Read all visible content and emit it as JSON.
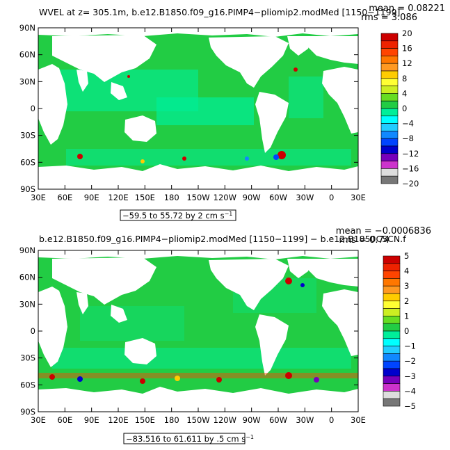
{
  "panels": [
    {
      "title": "WVEL at z= 305.1m, b.e12.B1850.f09_g16.PIMP4−pliomip2.modMed [1150−1199]",
      "mean_text": "mean = 0.08221",
      "rms_text": "rms = 3.086",
      "range_text": "−59.5 to 55.72 by 2 cm s",
      "range_unit_sup": "−1",
      "colorbar_labels": [
        "20",
        "16",
        "12",
        "8",
        "4",
        "0",
        "−4",
        "−8",
        "−12",
        "−16",
        "−20"
      ],
      "colorbar_colors": [
        "#cc0000",
        "#ee2200",
        "#ff4400",
        "#ff7700",
        "#ff9922",
        "#ffcc00",
        "#ffff33",
        "#ccee22",
        "#66dd22",
        "#22cc44",
        "#00ee99",
        "#00ffff",
        "#22ccff",
        "#1188ff",
        "#0044ff",
        "#0000cc",
        "#7700bb",
        "#cc33cc",
        "#dddddd",
        "#777777"
      ]
    },
    {
      "title": "b.e12.B1850.f09_g16.PIMP4−pliomip2.modMed [1150−1199] − b.e12.B1850C5CN.f",
      "mean_text": "mean = −0.0006836",
      "rms_text": "rms = 0.74",
      "range_text": "−83.516 to 61.611 by .5 cm s",
      "range_unit_sup": "−1",
      "colorbar_labels": [
        "5",
        "4",
        "3",
        "2",
        "1",
        "0",
        "−1",
        "−2",
        "−3",
        "−4",
        "−5"
      ],
      "colorbar_colors": [
        "#cc0000",
        "#ee2200",
        "#ff4400",
        "#ff7700",
        "#ff9922",
        "#ffcc00",
        "#ffff33",
        "#ccee22",
        "#66dd22",
        "#22cc44",
        "#00ee99",
        "#00ffff",
        "#22ccff",
        "#1188ff",
        "#0044ff",
        "#0000cc",
        "#7700bb",
        "#cc33cc",
        "#dddddd",
        "#777777"
      ]
    }
  ],
  "lat_labels": [
    "90N",
    "60N",
    "30N",
    "0",
    "30S",
    "60S",
    "90S"
  ],
  "lon_labels": [
    "30E",
    "60E",
    "90E",
    "120E",
    "150E",
    "180",
    "150W",
    "120W",
    "90W",
    "60W",
    "30W",
    "0",
    "30E"
  ],
  "map_colors": {
    "ocean": "#22cc44",
    "land": "#ffffff",
    "frame": "#000000"
  }
}
